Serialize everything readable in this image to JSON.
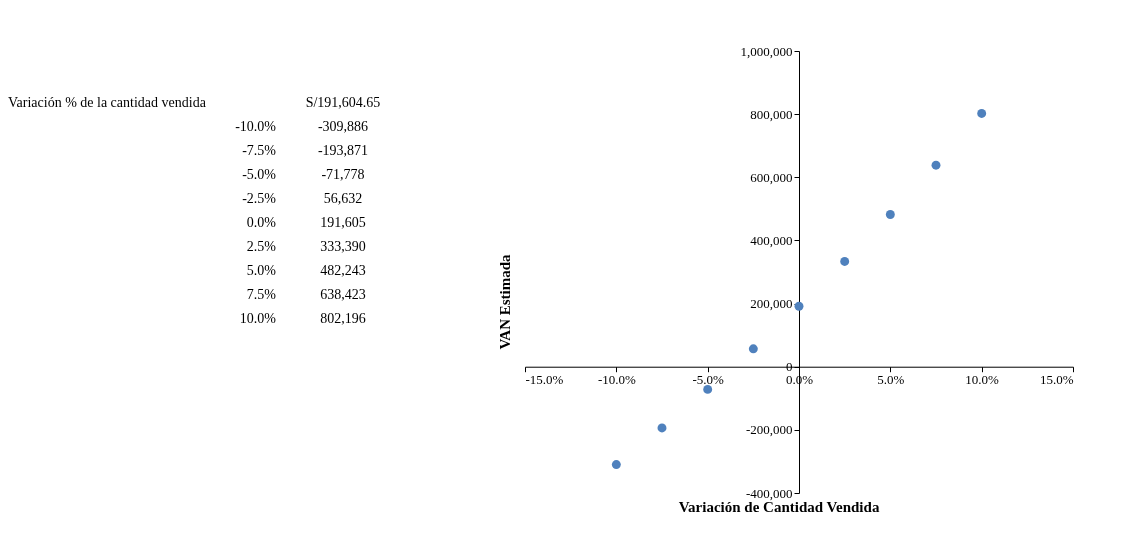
{
  "chart_data": {
    "type": "scatter",
    "xlabel": "Variación de Cantidad Vendida",
    "ylabel": "VAN Estimada",
    "annotations": [
      "Variación % de la cantidad vendida",
      "S/191,604.65",
      "-10.0%",
      "-309,886",
      "-7.5%",
      "-193,871",
      "-5.0%",
      "-71,778",
      "-2.5%",
      "56,632",
      "0.0%",
      "191,605",
      "2.5%",
      "333,390",
      "5.0%",
      "482,243",
      "7.5%",
      "638,423",
      "10.0%",
      "802,196"
    ],
    "x": [
      -0.1,
      -0.075,
      -0.05,
      -0.025,
      0.0,
      0.025,
      0.05,
      0.075,
      0.1
    ],
    "series": [
      {
        "color": "#4f81bd",
        "values": [
          -309886,
          -193871,
          -71778,
          56632,
          191605,
          333390,
          482243,
          638423,
          802196
        ]
      }
    ],
    "xlim": [
      -0.15,
      0.15
    ],
    "xticks": [
      {
        "value": -0.15,
        "label": "-15.0%"
      },
      {
        "value": -0.1,
        "label": "-10.0%"
      },
      {
        "value": -0.05,
        "label": "-5.0%"
      },
      {
        "value": 0,
        "label": "0.0%"
      },
      {
        "value": 0.05,
        "label": "5.0%"
      },
      {
        "value": 0.1,
        "label": "10.0%"
      },
      {
        "value": 0.15,
        "label": "15.0%"
      }
    ],
    "ylim": [
      -400000,
      1000000
    ],
    "yticks": [
      {
        "value": -400000,
        "label": "-400,000"
      },
      {
        "value": -200000,
        "label": "-200,000"
      },
      0,
      {
        "value": 200000,
        "label": "200,000"
      },
      {
        "value": 400000,
        "label": "400,000"
      },
      {
        "value": 600000,
        "label": "600,000"
      },
      {
        "value": 800000,
        "label": "800,000"
      },
      {
        "value": 1000000,
        "label": "1,000,000"
      }
    ],
    "marker": "circle",
    "grid": false
  }
}
